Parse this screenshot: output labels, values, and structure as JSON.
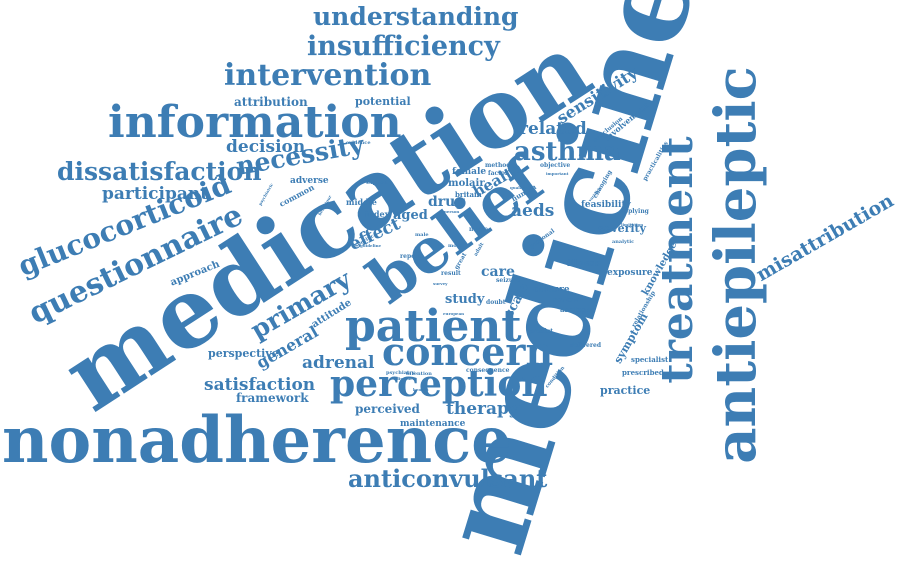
{
  "word_cloud": {
    "color": "#3d7db4",
    "words": {
      "medicine": "medicine",
      "medication": "medication",
      "belief": "belief",
      "nonadherence": "nonadherence",
      "antiepileptic": "antiepileptic",
      "treatment": "treatment",
      "information": "information",
      "patient": "patient",
      "concern": "concern",
      "perception": "perception",
      "questionnaire": "questionnaire",
      "glucocorticoid": "glucocorticoid",
      "intervention": "intervention",
      "insufficiency": "insufficiency",
      "understanding": "understanding",
      "dissatisfaction": "dissatisfaction",
      "necessity": "necessity",
      "asthma": "asthma",
      "anticonvulsant": "anticonvulsant",
      "primary": "primary",
      "misattribution": "misattribution",
      "participant": "participant",
      "decision": "decision",
      "related": "related",
      "sensitivity": "sensitivity",
      "satisfaction": "satisfaction",
      "therapy": "therapy",
      "adrenal": "adrenal",
      "general": "general",
      "effect": "effect",
      "attribution": "attribution",
      "potential": "potential",
      "framework": "framework",
      "perceived": "perceived",
      "perspective": "perspective",
      "aeds": "aeds",
      "health": "health",
      "scale": "scale",
      "drug": "drug",
      "care": "care",
      "study": "study",
      "aged": "aged",
      "attitude": "attitude",
      "knowledge": "knowledge",
      "symptom": "symptom",
      "severity": "severity",
      "approach": "approach",
      "maintenance": "maintenance",
      "adverse": "adverse",
      "common": "common",
      "molair": "molair",
      "female": "female",
      "culture": "culture",
      "illness": "illness",
      "exposure": "exposure",
      "practice": "practice",
      "feasibility": "feasibility",
      "involvement": "involvement",
      "conclusion": "conclusion",
      "middle": "middle",
      "index": "index",
      "review": "review",
      "analogue": "analogue",
      "delivered": "delivered",
      "predict": "predict",
      "consequence": "consequence",
      "intention": "intention",
      "psychiatry": "psychiatry",
      "prescribed": "prescribed",
      "specialist": "specialist",
      "relationship": "relationship",
      "practicalities": "practicalities",
      "changing": "changing",
      "applying": "applying",
      "analytic": "analytic",
      "evidence": "evidence",
      "support": "support",
      "method": "method",
      "factor": "factor",
      "objective": "objective",
      "important": "important",
      "britain": "britain",
      "human": "human",
      "result": "result",
      "doubt": "doubt",
      "survey": "survey",
      "seizure": "seizure",
      "personal": "personal",
      "great": "great",
      "report": "report",
      "specific": "specific",
      "nurse": "nurse",
      "mood": "mood",
      "guideline": "guideline",
      "person": "person",
      "behaviour": "behaviour",
      "psychiatric": "psychiatric",
      "condition": "condition",
      "variable": "variable",
      "limitation": "limitation",
      "benefit": "benefit",
      "european": "european",
      "male": "male",
      "adult": "adult",
      "disorder": "disorder",
      "qualitative": "qualitative"
    }
  }
}
